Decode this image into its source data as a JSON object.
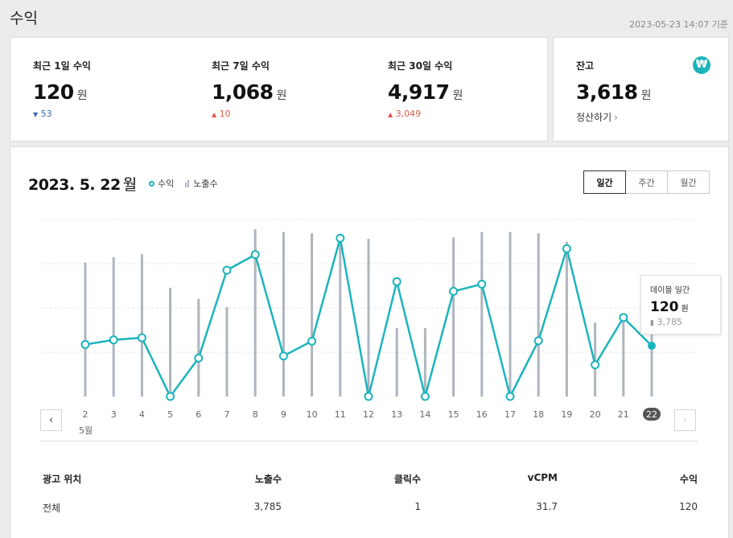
{
  "page": {
    "title": "수익",
    "as_of": "2023-05-23 14:07 기준"
  },
  "summary": [
    {
      "label": "최근 1일 수익",
      "value": "120",
      "unit": "원",
      "delta": "53",
      "direction": "down"
    },
    {
      "label": "최근 7일 수익",
      "value": "1,068",
      "unit": "원",
      "delta": "10",
      "direction": "up"
    },
    {
      "label": "최근 30일 수익",
      "value": "4,917",
      "unit": "원",
      "delta": "3,049",
      "direction": "up"
    }
  ],
  "balance": {
    "label": "잔고",
    "value": "3,618",
    "unit": "원",
    "icon": "won-icon",
    "icon_glyph": "₩",
    "settle_label": "정산하기"
  },
  "chart_header": {
    "date": "2023. 5. 22",
    "day_of_week": "월",
    "legend_revenue": "수익",
    "legend_impressions": "노출수",
    "periods": [
      "일간",
      "주간",
      "월간"
    ],
    "active_period": "일간"
  },
  "tooltip": {
    "title": "데이블 일간",
    "value": "120",
    "unit": "원",
    "impressions": "3,785"
  },
  "chart_data": {
    "type": "line",
    "x_month_label": "5월",
    "categories": [
      "2",
      "3",
      "4",
      "5",
      "6",
      "7",
      "8",
      "9",
      "10",
      "11",
      "12",
      "13",
      "14",
      "15",
      "16",
      "17",
      "18",
      "19",
      "20",
      "21",
      "22"
    ],
    "series": [
      {
        "name": "수익",
        "type": "line",
        "color": "#1bb4bc",
        "values": [
          123,
          134,
          139,
          0,
          91,
          299,
          336,
          96,
          131,
          375,
          0,
          272,
          0,
          249,
          266,
          0,
          132,
          350,
          75,
          187,
          120
        ]
      },
      {
        "name": "노출수",
        "type": "bar",
        "color": "#aeb5bf",
        "values": [
          4800,
          5000,
          5100,
          3900,
          3500,
          3200,
          6000,
          5900,
          5850,
          5800,
          5650,
          2450,
          2450,
          5700,
          5900,
          5900,
          5850,
          5550,
          2650,
          2850,
          3785
        ]
      }
    ],
    "selected_index": 20,
    "grid": "dashed-horizontal",
    "ylim_revenue": [
      0,
      400
    ],
    "ylim_impressions": [
      0,
      6000
    ]
  },
  "table": {
    "headers": [
      "광고 위치",
      "노출수",
      "클릭수",
      "vCPM",
      "수익"
    ],
    "rows": [
      [
        "전체",
        "3,785",
        "1",
        "31.7",
        "120"
      ]
    ]
  }
}
